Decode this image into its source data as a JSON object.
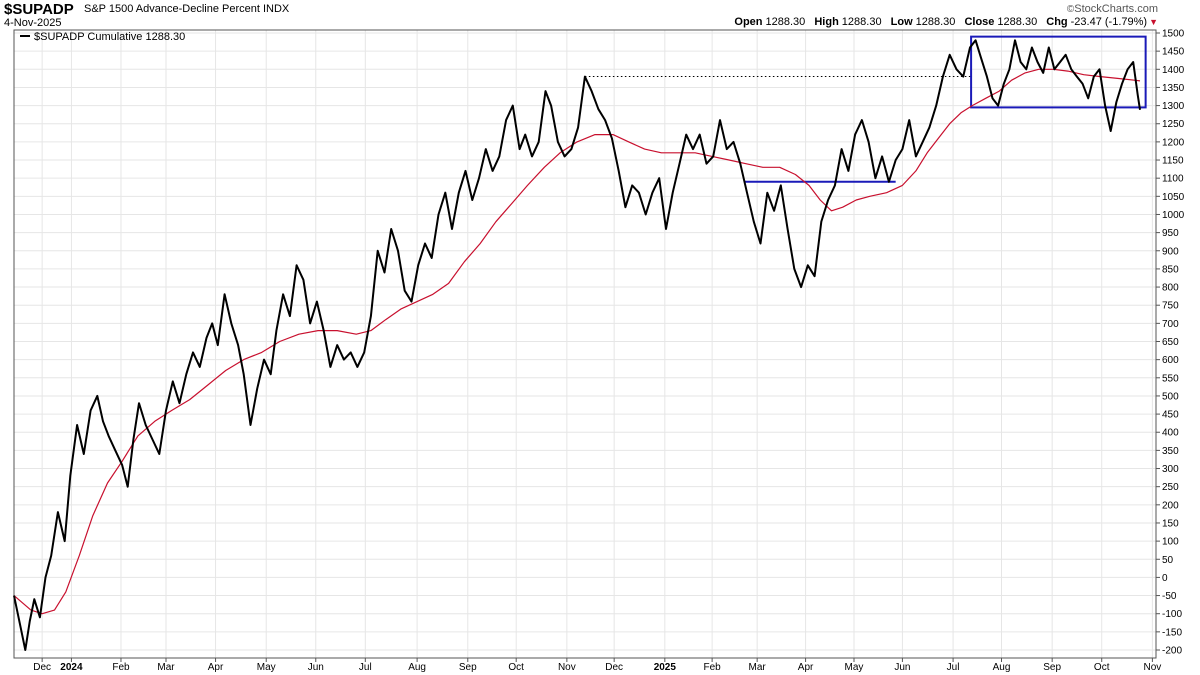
{
  "header": {
    "symbol": "$SUPADP",
    "description": "S&P 1500 Advance-Decline Percent INDX",
    "date": "4-Nov-2025",
    "brand": "StockCharts.com",
    "brand_icon": "copyright-icon",
    "open_label": "Open",
    "open_value": "1288.30",
    "high_label": "High",
    "high_value": "1288.30",
    "low_label": "Low",
    "low_value": "1288.30",
    "close_label": "Close",
    "close_value": "1288.30",
    "chg_label": "Chg",
    "chg_value": "-23.47 (-1.79%)",
    "chg_icon": "down-triangle-icon"
  },
  "legend": {
    "label": "$SUPADP Cumulative 1288.30"
  },
  "colors": {
    "price": "#000000",
    "ma": "#c8102e",
    "annotation": "#1a1ab8",
    "grid": "#e6e6e6"
  },
  "chart_data": {
    "type": "line",
    "title": "$SUPADP S&P 1500 Advance-Decline Percent INDX",
    "ylim": [
      -200,
      1500
    ],
    "y_ticks": [
      1500,
      1450,
      1400,
      1350,
      1300,
      1250,
      1200,
      1150,
      1100,
      1050,
      1000,
      950,
      900,
      850,
      800,
      750,
      700,
      650,
      600,
      550,
      500,
      450,
      400,
      350,
      300,
      250,
      200,
      150,
      100,
      50,
      0,
      -50,
      -100,
      -150,
      -200
    ],
    "x_range": [
      0,
      100
    ],
    "x_ticks": [
      {
        "label": "Dec",
        "x": 2.5
      },
      {
        "label": "2024",
        "x": 5.1,
        "bold": true
      },
      {
        "label": "Feb",
        "x": 9.5
      },
      {
        "label": "Mar",
        "x": 13.5
      },
      {
        "label": "Apr",
        "x": 17.9
      },
      {
        "label": "May",
        "x": 22.4
      },
      {
        "label": "Jun",
        "x": 26.8
      },
      {
        "label": "Jul",
        "x": 31.2
      },
      {
        "label": "Aug",
        "x": 35.8
      },
      {
        "label": "Sep",
        "x": 40.3
      },
      {
        "label": "Oct",
        "x": 44.6
      },
      {
        "label": "Nov",
        "x": 49.1
      },
      {
        "label": "Dec",
        "x": 53.3
      },
      {
        "label": "2025",
        "x": 57.8,
        "bold": true
      },
      {
        "label": "Feb",
        "x": 62.0
      },
      {
        "label": "Mar",
        "x": 66.0
      },
      {
        "label": "Apr",
        "x": 70.3
      },
      {
        "label": "May",
        "x": 74.6
      },
      {
        "label": "Jun",
        "x": 78.9
      },
      {
        "label": "Jul",
        "x": 83.4
      },
      {
        "label": "Aug",
        "x": 87.7
      },
      {
        "label": "Sep",
        "x": 92.2
      },
      {
        "label": "Oct",
        "x": 96.6
      },
      {
        "label": "Nov",
        "x": 101.1
      }
    ],
    "grid": true,
    "series": [
      {
        "name": "$SUPADP Cumulative",
        "points": [
          [
            0,
            -50
          ],
          [
            0.6,
            -140
          ],
          [
            1.0,
            -200
          ],
          [
            1.4,
            -120
          ],
          [
            1.8,
            -60
          ],
          [
            2.3,
            -110
          ],
          [
            2.8,
            0
          ],
          [
            3.3,
            60
          ],
          [
            3.9,
            180
          ],
          [
            4.5,
            100
          ],
          [
            5.0,
            280
          ],
          [
            5.6,
            420
          ],
          [
            6.2,
            340
          ],
          [
            6.8,
            460
          ],
          [
            7.4,
            500
          ],
          [
            7.9,
            430
          ],
          [
            8.4,
            390
          ],
          [
            9.0,
            350
          ],
          [
            9.6,
            310
          ],
          [
            10.1,
            250
          ],
          [
            10.6,
            380
          ],
          [
            11.1,
            480
          ],
          [
            11.7,
            420
          ],
          [
            12.3,
            380
          ],
          [
            12.9,
            340
          ],
          [
            13.5,
            460
          ],
          [
            14.1,
            540
          ],
          [
            14.7,
            480
          ],
          [
            15.3,
            560
          ],
          [
            15.9,
            620
          ],
          [
            16.5,
            580
          ],
          [
            17.1,
            660
          ],
          [
            17.6,
            700
          ],
          [
            18.1,
            640
          ],
          [
            18.7,
            780
          ],
          [
            19.3,
            700
          ],
          [
            19.9,
            640
          ],
          [
            20.4,
            560
          ],
          [
            21.0,
            420
          ],
          [
            21.6,
            520
          ],
          [
            22.2,
            600
          ],
          [
            22.8,
            560
          ],
          [
            23.3,
            680
          ],
          [
            23.9,
            780
          ],
          [
            24.5,
            720
          ],
          [
            25.1,
            860
          ],
          [
            25.7,
            820
          ],
          [
            26.3,
            700
          ],
          [
            26.9,
            760
          ],
          [
            27.5,
            680
          ],
          [
            28.1,
            580
          ],
          [
            28.7,
            640
          ],
          [
            29.3,
            600
          ],
          [
            29.9,
            620
          ],
          [
            30.5,
            580
          ],
          [
            31.1,
            620
          ],
          [
            31.7,
            720
          ],
          [
            32.3,
            900
          ],
          [
            32.9,
            840
          ],
          [
            33.5,
            960
          ],
          [
            34.1,
            900
          ],
          [
            34.7,
            790
          ],
          [
            35.3,
            760
          ],
          [
            35.9,
            860
          ],
          [
            36.5,
            920
          ],
          [
            37.1,
            880
          ],
          [
            37.7,
            1000
          ],
          [
            38.3,
            1060
          ],
          [
            38.9,
            960
          ],
          [
            39.5,
            1060
          ],
          [
            40.1,
            1120
          ],
          [
            40.7,
            1040
          ],
          [
            41.3,
            1100
          ],
          [
            41.9,
            1180
          ],
          [
            42.5,
            1120
          ],
          [
            43.1,
            1160
          ],
          [
            43.7,
            1260
          ],
          [
            44.3,
            1300
          ],
          [
            44.9,
            1180
          ],
          [
            45.4,
            1220
          ],
          [
            46.0,
            1160
          ],
          [
            46.6,
            1200
          ],
          [
            47.2,
            1340
          ],
          [
            47.7,
            1300
          ],
          [
            48.3,
            1200
          ],
          [
            48.9,
            1160
          ],
          [
            49.5,
            1180
          ],
          [
            50.1,
            1240
          ],
          [
            50.7,
            1380
          ],
          [
            51.3,
            1340
          ],
          [
            51.9,
            1290
          ],
          [
            52.5,
            1260
          ],
          [
            53.1,
            1210
          ],
          [
            53.7,
            1120
          ],
          [
            54.3,
            1020
          ],
          [
            54.9,
            1080
          ],
          [
            55.5,
            1060
          ],
          [
            56.1,
            1000
          ],
          [
            56.7,
            1060
          ],
          [
            57.3,
            1100
          ],
          [
            57.9,
            960
          ],
          [
            58.5,
            1060
          ],
          [
            59.1,
            1140
          ],
          [
            59.7,
            1220
          ],
          [
            60.3,
            1180
          ],
          [
            60.9,
            1220
          ],
          [
            61.5,
            1140
          ],
          [
            62.1,
            1160
          ],
          [
            62.7,
            1260
          ],
          [
            63.3,
            1180
          ],
          [
            63.9,
            1200
          ],
          [
            64.5,
            1140
          ],
          [
            65.1,
            1060
          ],
          [
            65.7,
            980
          ],
          [
            66.3,
            920
          ],
          [
            66.9,
            1060
          ],
          [
            67.5,
            1010
          ],
          [
            68.1,
            1080
          ],
          [
            68.7,
            960
          ],
          [
            69.3,
            850
          ],
          [
            69.9,
            800
          ],
          [
            70.5,
            860
          ],
          [
            71.1,
            830
          ],
          [
            71.7,
            980
          ],
          [
            72.3,
            1040
          ],
          [
            72.9,
            1080
          ],
          [
            73.5,
            1180
          ],
          [
            74.1,
            1120
          ],
          [
            74.7,
            1220
          ],
          [
            75.3,
            1260
          ],
          [
            75.9,
            1200
          ],
          [
            76.5,
            1100
          ],
          [
            77.1,
            1160
          ],
          [
            77.7,
            1090
          ],
          [
            78.3,
            1150
          ],
          [
            78.9,
            1180
          ],
          [
            79.5,
            1260
          ],
          [
            80.1,
            1160
          ],
          [
            80.7,
            1200
          ],
          [
            81.3,
            1240
          ],
          [
            81.9,
            1300
          ],
          [
            82.5,
            1380
          ],
          [
            83.1,
            1440
          ],
          [
            83.7,
            1400
          ],
          [
            84.3,
            1380
          ],
          [
            84.9,
            1460
          ],
          [
            85.4,
            1480
          ],
          [
            85.9,
            1430
          ],
          [
            86.4,
            1380
          ],
          [
            86.9,
            1320
          ],
          [
            87.4,
            1300
          ],
          [
            87.9,
            1360
          ],
          [
            88.4,
            1400
          ],
          [
            88.9,
            1480
          ],
          [
            89.4,
            1420
          ],
          [
            89.9,
            1400
          ],
          [
            90.4,
            1460
          ],
          [
            90.9,
            1420
          ],
          [
            91.4,
            1390
          ],
          [
            91.9,
            1460
          ],
          [
            92.4,
            1400
          ],
          [
            92.9,
            1420
          ],
          [
            93.4,
            1440
          ],
          [
            93.9,
            1400
          ],
          [
            94.4,
            1380
          ],
          [
            94.9,
            1360
          ],
          [
            95.4,
            1320
          ],
          [
            95.9,
            1380
          ],
          [
            96.4,
            1400
          ],
          [
            96.9,
            1300
          ],
          [
            97.4,
            1230
          ],
          [
            97.9,
            1310
          ],
          [
            98.4,
            1360
          ],
          [
            98.9,
            1400
          ],
          [
            99.4,
            1420
          ],
          [
            99.8,
            1330
          ],
          [
            100,
            1288.3
          ]
        ]
      },
      {
        "name": "moving average",
        "points": [
          [
            0,
            -50
          ],
          [
            1.5,
            -90
          ],
          [
            2.5,
            -100
          ],
          [
            3.6,
            -90
          ],
          [
            4.6,
            -40
          ],
          [
            5.8,
            60
          ],
          [
            7.0,
            170
          ],
          [
            8.3,
            260
          ],
          [
            9.6,
            320
          ],
          [
            11.0,
            390
          ],
          [
            12.5,
            430
          ],
          [
            14.0,
            460
          ],
          [
            15.6,
            490
          ],
          [
            17.2,
            530
          ],
          [
            18.8,
            570
          ],
          [
            20.4,
            600
          ],
          [
            22.0,
            620
          ],
          [
            23.6,
            650
          ],
          [
            25.3,
            670
          ],
          [
            27.0,
            680
          ],
          [
            28.7,
            680
          ],
          [
            30.4,
            670
          ],
          [
            31.7,
            680
          ],
          [
            33.0,
            710
          ],
          [
            34.4,
            740
          ],
          [
            35.8,
            760
          ],
          [
            37.2,
            780
          ],
          [
            38.6,
            810
          ],
          [
            40.0,
            870
          ],
          [
            41.4,
            920
          ],
          [
            42.8,
            980
          ],
          [
            44.2,
            1030
          ],
          [
            45.6,
            1080
          ],
          [
            47.1,
            1130
          ],
          [
            48.5,
            1170
          ],
          [
            50.0,
            1200
          ],
          [
            51.6,
            1220
          ],
          [
            53.2,
            1220
          ],
          [
            54.6,
            1200
          ],
          [
            56.0,
            1180
          ],
          [
            57.5,
            1170
          ],
          [
            59.0,
            1170
          ],
          [
            60.5,
            1170
          ],
          [
            62.0,
            1160
          ],
          [
            63.5,
            1150
          ],
          [
            65.0,
            1140
          ],
          [
            66.5,
            1130
          ],
          [
            68.0,
            1130
          ],
          [
            69.4,
            1110
          ],
          [
            70.6,
            1080
          ],
          [
            71.6,
            1040
          ],
          [
            72.6,
            1010
          ],
          [
            73.6,
            1020
          ],
          [
            74.8,
            1040
          ],
          [
            76.0,
            1050
          ],
          [
            77.5,
            1060
          ],
          [
            78.9,
            1080
          ],
          [
            80.1,
            1120
          ],
          [
            81.1,
            1170
          ],
          [
            82.1,
            1210
          ],
          [
            83.1,
            1250
          ],
          [
            84.1,
            1280
          ],
          [
            85.1,
            1300
          ],
          [
            86.3,
            1320
          ],
          [
            87.5,
            1340
          ],
          [
            88.6,
            1370
          ],
          [
            89.8,
            1390
          ],
          [
            91.0,
            1400
          ],
          [
            92.3,
            1400
          ],
          [
            93.6,
            1395
          ],
          [
            95.0,
            1385
          ],
          [
            96.5,
            1380
          ],
          [
            98.0,
            1375
          ],
          [
            99.5,
            1370
          ],
          [
            100,
            1368
          ]
        ]
      }
    ],
    "annotations": [
      {
        "type": "dotted-line",
        "x1": 50.7,
        "x2": 85.0,
        "y": 1380
      },
      {
        "type": "line",
        "x1": 64.9,
        "x2": 78.3,
        "y": 1090
      },
      {
        "type": "box",
        "x1": 85.0,
        "x2": 100.5,
        "y1": 1295,
        "y2": 1490
      }
    ]
  }
}
